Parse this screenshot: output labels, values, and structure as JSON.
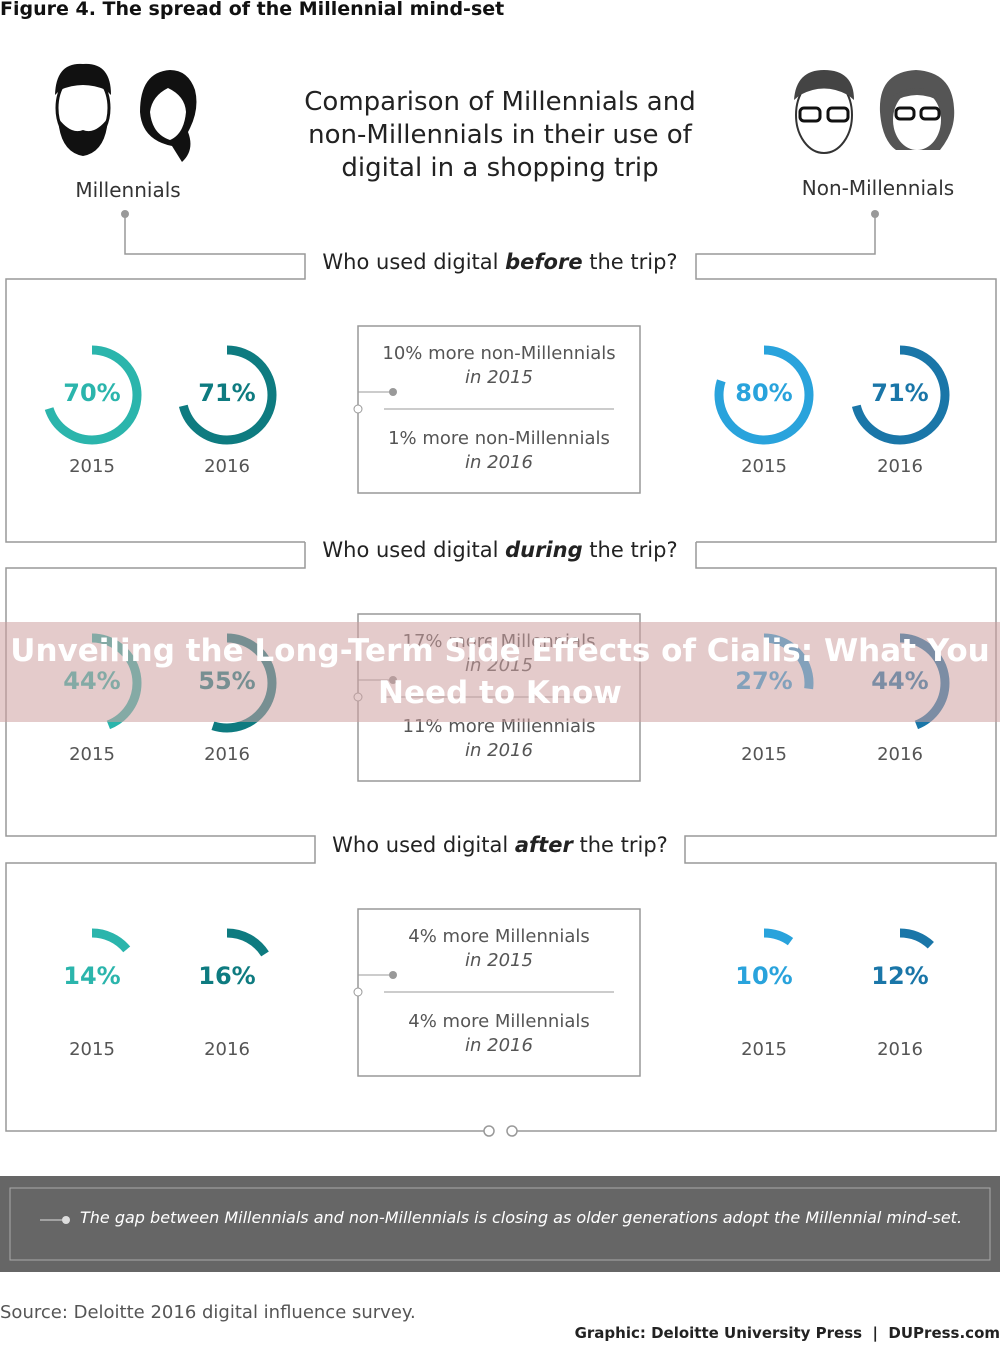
{
  "figure_title": "Figure 4. The spread of the Millennial mind-set",
  "header": {
    "title": "Comparison of Millennials and non-Millennials in their use of digital in a shopping trip",
    "left_label": "Millennials",
    "right_label": "Non-Millennials"
  },
  "colors": {
    "millennials": [
      "#2bb5ac",
      "#0e7b80"
    ],
    "non_millennials": [
      "#29a3dc",
      "#1a76a8"
    ]
  },
  "sections": [
    {
      "question": {
        "prefix": "Who used digital ",
        "emphasis": "before",
        "suffix": " the trip?"
      },
      "years": [
        "2015",
        "2016"
      ],
      "millennials": {
        "values": [
          70,
          71
        ],
        "value_labels": [
          "70%",
          "71%"
        ]
      },
      "non_millennials": {
        "values": [
          80,
          71
        ],
        "value_labels": [
          "80%",
          "71%"
        ]
      },
      "notes": [
        {
          "text": "10% more non-Millennials",
          "period": "in 2015"
        },
        {
          "text": "1% more non-Millennials",
          "period": "in 2016"
        }
      ]
    },
    {
      "question": {
        "prefix": "Who used digital ",
        "emphasis": "during",
        "suffix": " the trip?"
      },
      "years": [
        "2015",
        "2016"
      ],
      "millennials": {
        "values": [
          44,
          55
        ],
        "value_labels": [
          "44%",
          "55%"
        ]
      },
      "non_millennials": {
        "values": [
          27,
          44
        ],
        "value_labels": [
          "27%",
          "44%"
        ]
      },
      "notes": [
        {
          "text": "17% more Millennials",
          "period": "in 2015"
        },
        {
          "text": "11% more Millennials",
          "period": "in 2016"
        }
      ]
    },
    {
      "question": {
        "prefix": "Who used digital ",
        "emphasis": "after",
        "suffix": " the trip?"
      },
      "years": [
        "2015",
        "2016"
      ],
      "millennials": {
        "values": [
          14,
          16
        ],
        "value_labels": [
          "14%",
          "16%"
        ]
      },
      "non_millennials": {
        "values": [
          10,
          12
        ],
        "value_labels": [
          "10%",
          "12%"
        ]
      },
      "notes": [
        {
          "text": "4% more Millennials",
          "period": "in 2015"
        },
        {
          "text": "4% more Millennials",
          "period": "in 2016"
        }
      ]
    }
  ],
  "banner": "Unveiling the Long-Term Side Effects of Cialis: What You Need to Know",
  "conclusion": "The gap between Millennials and non-Millennials is closing as older generations adopt the Millennial mind-set.",
  "source": "Source: Deloitte 2016 digital influence survey.",
  "credit": "Graphic: Deloitte University Press  |  DUPress.com"
}
